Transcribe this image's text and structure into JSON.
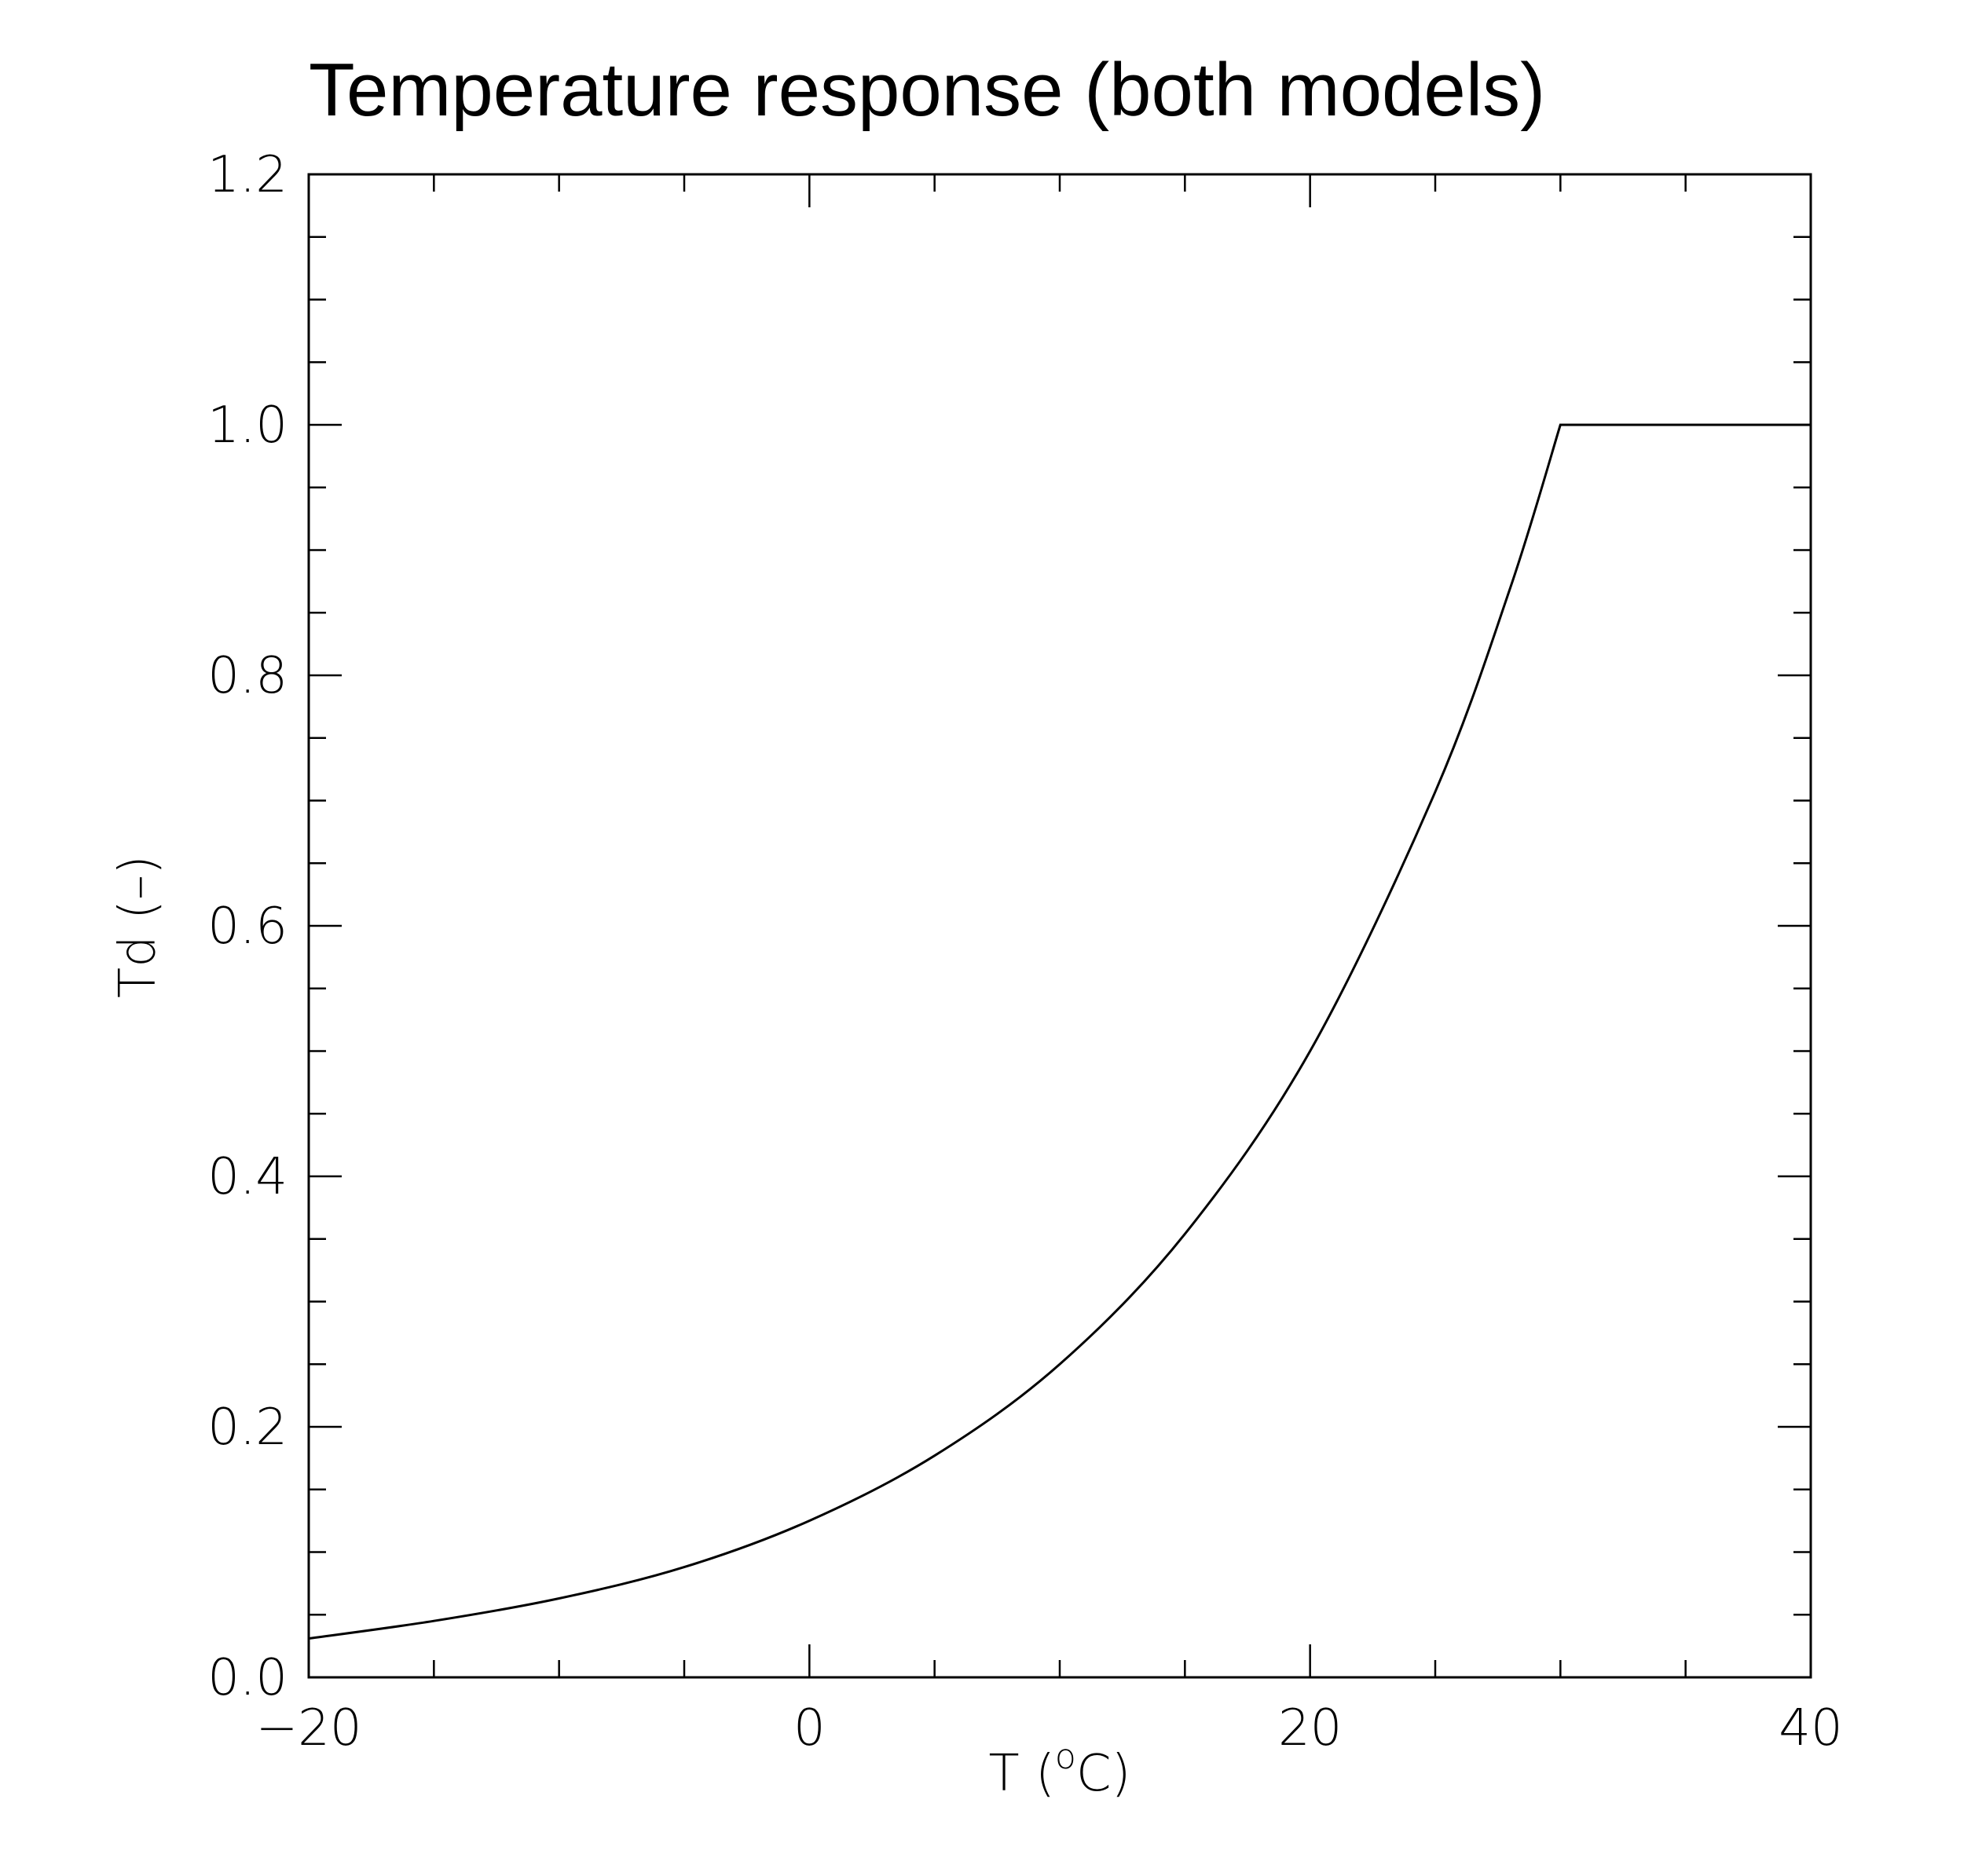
{
  "chart_data": {
    "type": "line",
    "title": "Temperature response (both models)",
    "xlabel_main": "T (",
    "xlabel_sup": "o",
    "xlabel_end": "C)",
    "ylabel": "Td (–)",
    "xlim": [
      -20,
      40
    ],
    "ylim": [
      0.0,
      1.2
    ],
    "xticks_major": [
      -20,
      0,
      20,
      40
    ],
    "xticks_minor_step": 5,
    "xtick_labels": [
      "−20",
      "0",
      "20",
      "40"
    ],
    "yticks_major": [
      0.0,
      0.2,
      0.4,
      0.6,
      0.8,
      1.0,
      1.2
    ],
    "yticks_minor_step": 0.05,
    "ytick_labels": [
      "0.0",
      "0.2",
      "0.4",
      "0.6",
      "0.8",
      "1.0",
      "1.2"
    ],
    "grid": false,
    "line_color": "#000000",
    "series": [
      {
        "x": [
          -20,
          -15,
          -10,
          -5,
          0,
          5,
          10,
          15,
          20,
          25,
          28,
          30,
          35,
          40
        ],
        "y": [
          0.031,
          0.045,
          0.063,
          0.088,
          0.125,
          0.177,
          0.25,
          0.354,
          0.5,
          0.707,
          0.87,
          1.0,
          1.0,
          1.0
        ]
      }
    ]
  }
}
